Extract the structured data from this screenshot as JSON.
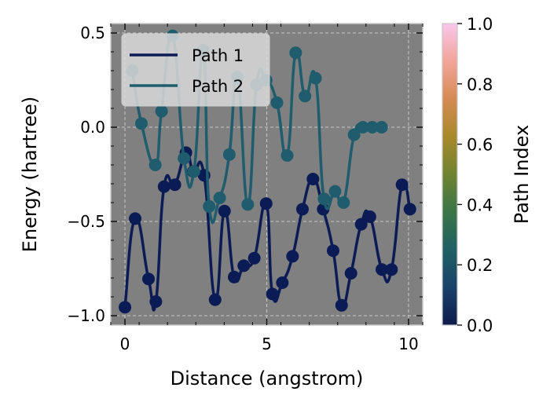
{
  "chart_data": {
    "type": "line",
    "xlabel": "Distance (angstrom)",
    "ylabel": "Energy (hartree)",
    "xlim": [
      -0.5,
      10.5
    ],
    "ylim": [
      -1.05,
      0.55
    ],
    "xticks": [
      0,
      5,
      10
    ],
    "xtick_labels": [
      "0",
      "5",
      "10"
    ],
    "yticks": [
      -1.0,
      -0.5,
      0.0,
      0.5
    ],
    "ytick_labels": [
      "−1.0",
      "−0.5",
      "0.0",
      "0.5"
    ],
    "grid": true,
    "background": "#808080",
    "legend_position": "top-left",
    "series": [
      {
        "name": "Path 1",
        "color": "#0b1b55",
        "x": [
          0,
          0.36,
          0.83,
          1.09,
          1.38,
          1.76,
          2.15,
          2.41,
          2.79,
          3.18,
          3.51,
          3.85,
          4.19,
          4.56,
          4.98,
          5.2,
          5.55,
          5.91,
          6.26,
          6.63,
          6.99,
          7.34,
          7.64,
          7.97,
          8.33,
          8.64,
          9.06,
          9.4,
          9.77,
          10.05
        ],
        "y": [
          -0.955,
          -0.485,
          -0.805,
          -0.925,
          -0.315,
          -0.305,
          -0.135,
          -0.235,
          -0.255,
          -0.915,
          -0.445,
          -0.795,
          -0.735,
          -0.695,
          -0.405,
          -0.885,
          -0.825,
          -0.685,
          -0.435,
          -0.275,
          -0.435,
          -0.655,
          -0.945,
          -0.775,
          -0.515,
          -0.475,
          -0.755,
          -0.755,
          -0.305,
          -0.435
        ]
      },
      {
        "name": "Path 2",
        "color": "#1f5d6e",
        "x": [
          0.26,
          0.58,
          1.07,
          1.29,
          1.68,
          2.08,
          2.43,
          2.76,
          2.97,
          3.34,
          3.68,
          3.97,
          4.33,
          4.64,
          4.98,
          5.36,
          5.72,
          6.02,
          6.35,
          6.72,
          7.02,
          7.41,
          7.71,
          8.08,
          8.39,
          8.72,
          9.05
        ],
        "y": [
          0.3,
          0.02,
          -0.2,
          0.085,
          0.485,
          -0.165,
          -0.235,
          0.41,
          -0.42,
          -0.375,
          -0.145,
          0.265,
          -0.41,
          0.225,
          0.25,
          0.13,
          -0.15,
          0.395,
          0.165,
          0.26,
          -0.38,
          -0.34,
          -0.4,
          -0.04,
          0.0,
          0.0,
          0.0
        ]
      }
    ],
    "colorbar": {
      "label": "Path Index",
      "min": 0.0,
      "max": 1.0,
      "ticks": [
        0.0,
        0.2,
        0.4,
        0.6,
        0.8,
        1.0
      ],
      "tick_labels": [
        "0.0",
        "0.2",
        "0.4",
        "0.6",
        "0.8",
        "1.0"
      ],
      "colormap": "batlow-like",
      "stops": [
        "#0d1b4c",
        "#19426a",
        "#1f6063",
        "#3a7547",
        "#6f8331",
        "#a8892a",
        "#d58b52",
        "#f2a59a",
        "#f8c7e9"
      ]
    }
  }
}
